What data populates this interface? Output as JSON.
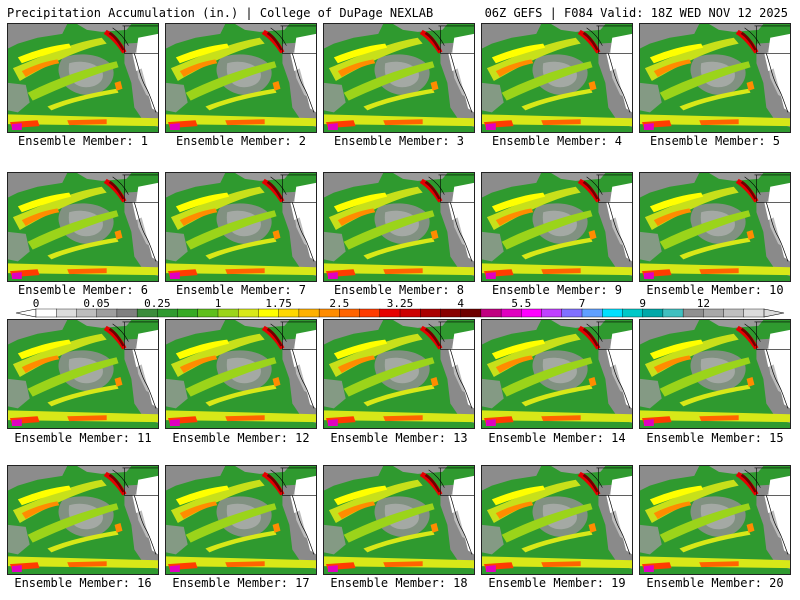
{
  "header": {
    "left": "Precipitation Accumulation (in.) | College of DuPage NEXLAB",
    "right": "06Z GEFS | F084 Valid: 18Z WED NOV 12 2025"
  },
  "members": [
    "Ensemble Member: 1",
    "Ensemble Member: 2",
    "Ensemble Member: 3",
    "Ensemble Member: 4",
    "Ensemble Member: 5",
    "Ensemble Member: 6",
    "Ensemble Member: 7",
    "Ensemble Member: 8",
    "Ensemble Member: 9",
    "Ensemble Member: 10",
    "Ensemble Member: 11",
    "Ensemble Member: 12",
    "Ensemble Member: 13",
    "Ensemble Member: 14",
    "Ensemble Member: 15",
    "Ensemble Member: 16",
    "Ensemble Member: 17",
    "Ensemble Member: 18",
    "Ensemble Member: 19",
    "Ensemble Member: 20"
  ],
  "colorbar": {
    "tick_labels": [
      "0",
      "0.05",
      "0.25",
      "1",
      "1.75",
      "2.5",
      "3.25",
      "4",
      "5.5",
      "7",
      "9",
      "12"
    ],
    "colors": [
      "#ffffff",
      "#dcdcdc",
      "#bdbdbd",
      "#9e9e9e",
      "#808080",
      "#3c8c3c",
      "#2f9a2f",
      "#36aa24",
      "#5fbf1c",
      "#9bd41a",
      "#d8e818",
      "#ffff00",
      "#ffd700",
      "#ffb000",
      "#ff8c00",
      "#ff6400",
      "#ff3c00",
      "#e60000",
      "#cc0000",
      "#aa0000",
      "#880000",
      "#6e0000",
      "#c00080",
      "#e000c0",
      "#ff00ff",
      "#c040ff",
      "#8070ff",
      "#5fa0ff",
      "#00e0ff",
      "#00c8c8",
      "#00a8a8",
      "#40c0c0",
      "#909090",
      "#a8a8a8",
      "#c0c0c0",
      "#dcdcdc"
    ]
  }
}
